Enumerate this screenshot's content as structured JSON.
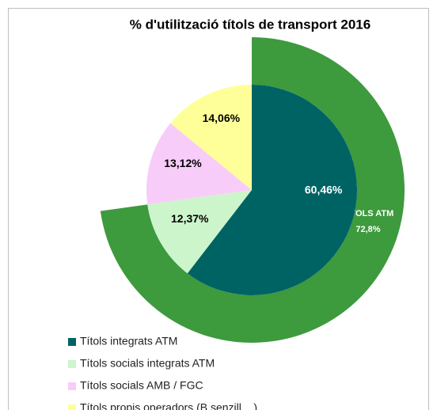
{
  "chart_data": {
    "type": "pie",
    "title": "% d'utilització títols de transport 2016",
    "categories": [
      "Títols integrats ATM",
      "Títols socials integrats ATM",
      "Títols socials AMB / FGC",
      "Títols propis operadors (B.senzill,...)"
    ],
    "values": [
      60.46,
      12.37,
      13.12,
      14.06
    ],
    "value_labels": [
      "60,46%",
      "12,37%",
      "13,12%",
      "14,06%"
    ],
    "colors": [
      "#006363",
      "#ccf5cc",
      "#f8ccf8",
      "#ffff99"
    ],
    "ring": {
      "name": "TITOLS ATM",
      "value": 72.8,
      "value_label": "72,8%",
      "color": "#3d9a3d"
    }
  }
}
